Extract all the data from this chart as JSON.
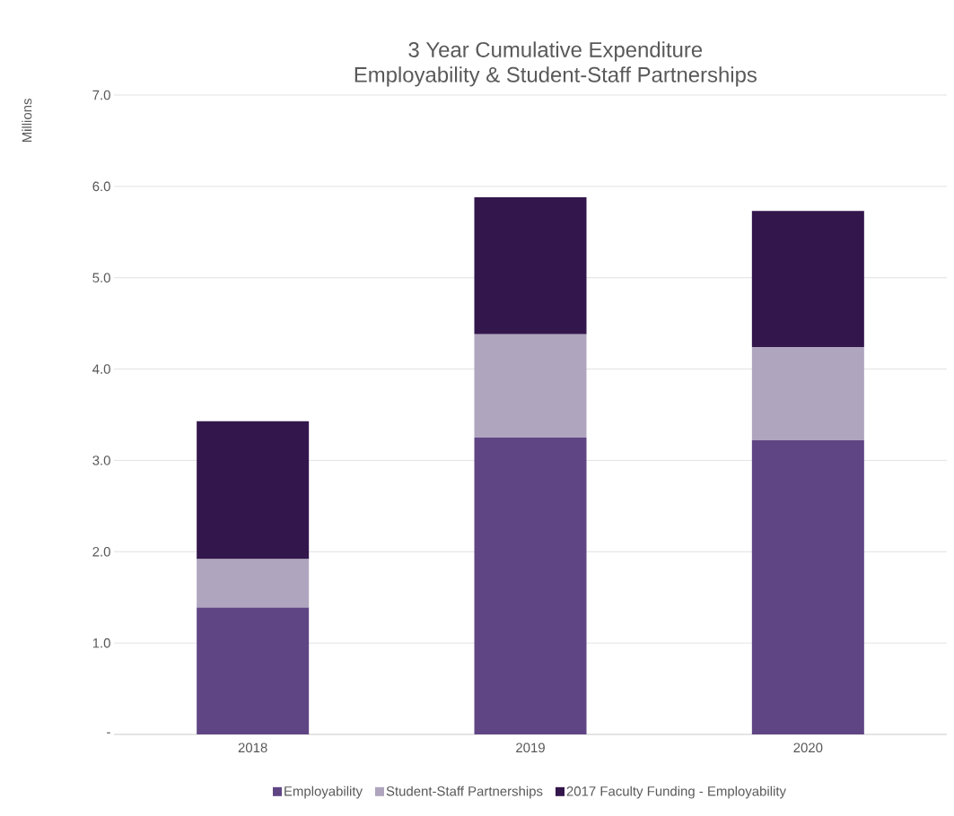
{
  "chart_data": {
    "type": "bar",
    "stacked": true,
    "title": "3 Year Cumulative Expenditure\nEmployability & Student-Staff Partnerships",
    "ylabel": "Millions",
    "categories": [
      "2018",
      "2019",
      "2020"
    ],
    "series": [
      {
        "name": "Employability",
        "color": "#604584",
        "values": [
          1.39,
          3.25,
          3.22
        ]
      },
      {
        "name": "Student-Staff Partnerships",
        "color": "#afa5be",
        "values": [
          0.53,
          1.13,
          1.02
        ]
      },
      {
        "name": "2017 Faculty Funding - Employability",
        "color": "#33164c",
        "values": [
          1.51,
          1.5,
          1.49
        ]
      }
    ],
    "ylim": [
      0,
      7
    ],
    "yticks": [
      {
        "value": 0,
        "label": "-"
      },
      {
        "value": 1,
        "label": "1.0"
      },
      {
        "value": 2,
        "label": "2.0"
      },
      {
        "value": 3,
        "label": "3.0"
      },
      {
        "value": 4,
        "label": "4.0"
      },
      {
        "value": 5,
        "label": "5.0"
      },
      {
        "value": 6,
        "label": "6.0"
      },
      {
        "value": 7,
        "label": "7.0"
      }
    ],
    "grid": "y",
    "legend": "bottom"
  }
}
